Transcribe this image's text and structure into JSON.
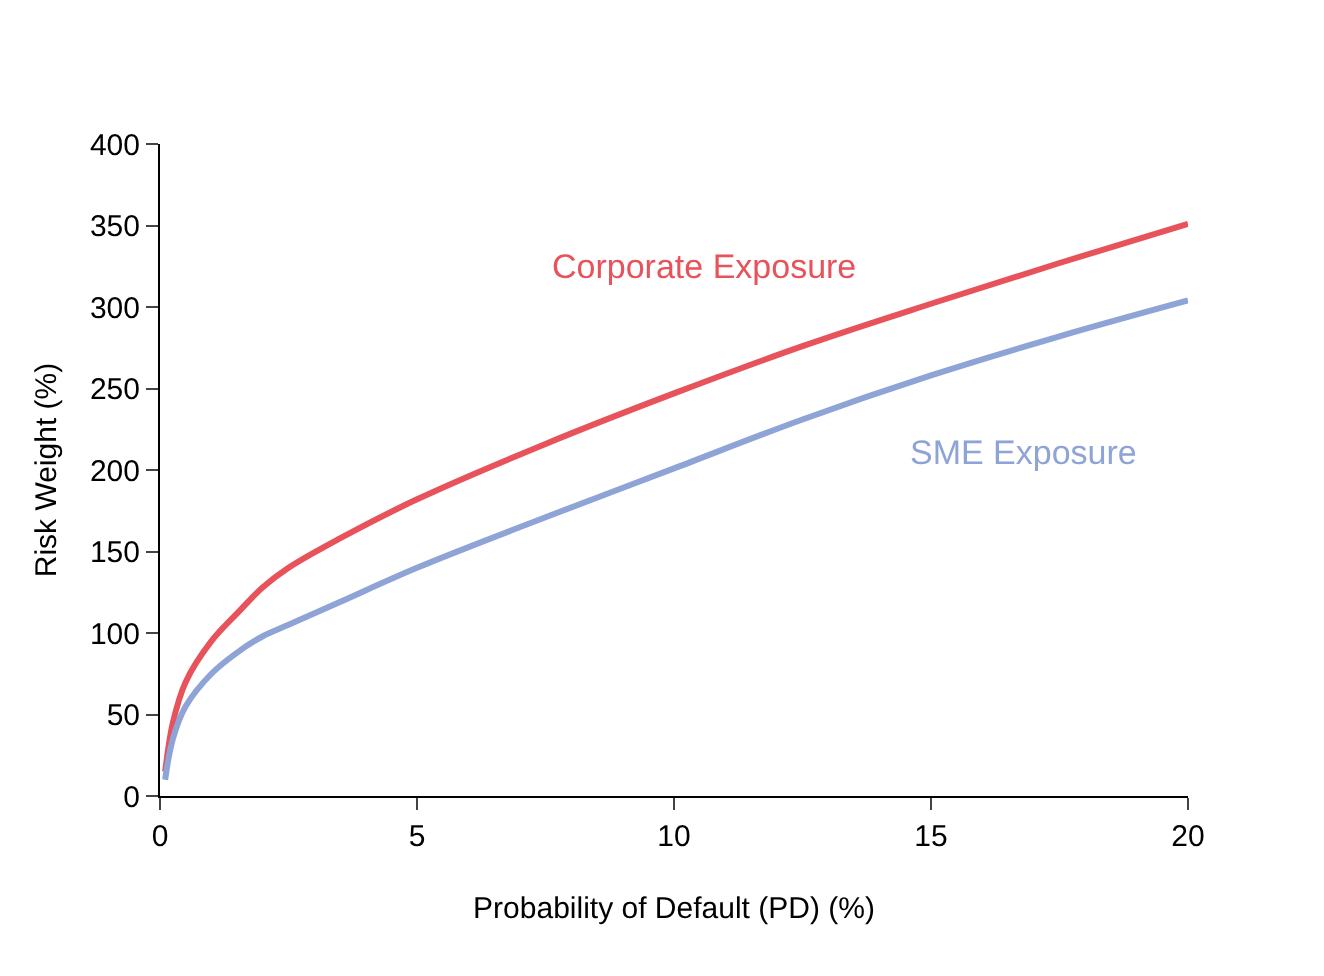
{
  "chart_data": {
    "type": "line",
    "xlabel": "Probability of Default (PD) (%)",
    "ylabel": "Risk Weight (%)",
    "xlim": [
      0,
      20
    ],
    "xticks": [
      0,
      5,
      10,
      15,
      20
    ],
    "ylim": [
      0,
      400
    ],
    "yticks": [
      0,
      50,
      100,
      150,
      200,
      250,
      300,
      350,
      400
    ],
    "legend": false,
    "marker": "none",
    "line_style": "solid",
    "series": [
      {
        "name": "Corporate Exposure",
        "color": "#e8525b",
        "x": [
          0.1,
          0.25,
          0.5,
          1,
          1.5,
          2,
          2.5,
          3.5,
          5,
          7.5,
          10,
          12.5,
          15,
          17.5,
          20
        ],
        "values": [
          15,
          45,
          70,
          95,
          112,
          128,
          140,
          158,
          182,
          216,
          247,
          276,
          302,
          327,
          351
        ]
      },
      {
        "name": "SME Exposure",
        "color": "#8ea3d6",
        "x": [
          0.1,
          0.25,
          0.5,
          1,
          1.5,
          2,
          2.5,
          3.5,
          5,
          7.5,
          10,
          12.5,
          15,
          17.5,
          20
        ],
        "values": [
          10,
          35,
          55,
          75,
          88,
          98,
          105,
          119,
          140,
          171,
          201,
          231,
          258,
          282,
          304
        ]
      }
    ]
  }
}
